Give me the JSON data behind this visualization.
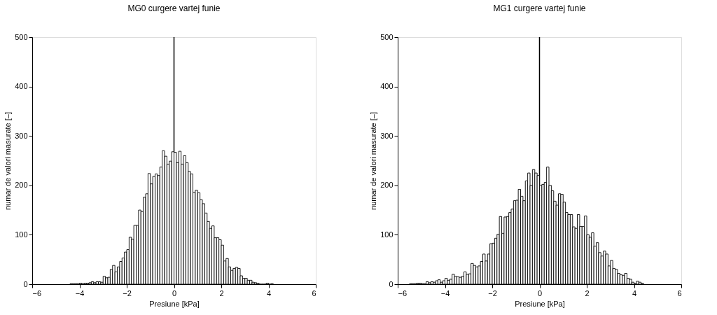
{
  "chart_data": [
    {
      "type": "histogram",
      "title": "MG0 curgere vartej funie",
      "xlabel": "Presiune [kPa]",
      "ylabel": "numar de valori masurate [–]",
      "color": "#ffffff",
      "bins": [
        -4.4,
        -4.3,
        -4.2,
        -4.1,
        -4.0,
        -3.9,
        -3.8,
        -3.7,
        -3.6,
        -3.5,
        -3.4,
        -3.3,
        -3.2,
        -3.1,
        -3.0,
        -2.9,
        -2.8,
        -2.7,
        -2.6,
        -2.5,
        -2.4,
        -2.3,
        -2.2,
        -2.1,
        -2.0,
        -1.9,
        -1.8,
        -1.7,
        -1.6,
        -1.5,
        -1.4,
        -1.3,
        -1.2,
        -1.1,
        -1.0,
        -0.9,
        -0.8,
        -0.7,
        -0.6,
        -0.5,
        -0.4,
        -0.3,
        -0.2,
        -0.1,
        0.0,
        0.1,
        0.2,
        0.3,
        0.4,
        0.5,
        0.6,
        0.7,
        0.8,
        0.9,
        1.0,
        1.1,
        1.2,
        1.3,
        1.4,
        1.5,
        1.6,
        1.7,
        1.8,
        1.9,
        2.0,
        2.1,
        2.2,
        2.3,
        2.4,
        2.5,
        2.6,
        2.7,
        2.8,
        2.9,
        3.0,
        3.1,
        3.2,
        3.3,
        3.4,
        3.5,
        3.6,
        3.7,
        3.8,
        3.9,
        4.0,
        4.1,
        4.2
      ],
      "values": [
        1,
        1,
        1,
        1,
        2,
        1,
        2,
        2,
        3,
        5,
        3,
        5,
        5,
        4,
        16,
        13,
        14,
        30,
        38,
        25,
        35,
        46,
        53,
        65,
        70,
        95,
        91,
        119,
        119,
        150,
        147,
        176,
        183,
        224,
        203,
        218,
        223,
        220,
        237,
        270,
        259,
        243,
        249,
        268,
        267,
        246,
        269,
        243,
        260,
        246,
        228,
        223,
        186,
        190,
        185,
        171,
        163,
        144,
        127,
        113,
        118,
        94,
        94,
        90,
        79,
        47,
        52,
        35,
        28,
        32,
        34,
        32,
        17,
        12,
        12,
        8,
        8,
        4,
        3,
        2,
        0,
        0,
        0,
        2,
        0,
        1
      ],
      "xlim": [
        -6,
        6
      ],
      "xticks": [
        -6,
        -4,
        -2,
        0,
        2,
        4,
        6
      ],
      "ylim": [
        0,
        500
      ],
      "yticks": [
        0,
        100,
        200,
        300,
        400,
        500
      ],
      "grid": false,
      "ref_lines": [
        {
          "axis": "x",
          "value": 0,
          "color": "#000000"
        }
      ]
    },
    {
      "type": "histogram",
      "title": "MG1 curgere vartej funie",
      "xlabel": "Presiune [kPa]",
      "ylabel": "numar de valori masurate [–]",
      "color": "#ffffff",
      "bins": [
        -5.5,
        -5.4,
        -5.3,
        -5.2,
        -5.1,
        -5.0,
        -4.9,
        -4.8,
        -4.7,
        -4.6,
        -4.5,
        -4.4,
        -4.3,
        -4.2,
        -4.1,
        -4.0,
        -3.9,
        -3.8,
        -3.7,
        -3.6,
        -3.5,
        -3.4,
        -3.3,
        -3.2,
        -3.1,
        -3.0,
        -2.9,
        -2.8,
        -2.7,
        -2.6,
        -2.5,
        -2.4,
        -2.3,
        -2.2,
        -2.1,
        -2.0,
        -1.9,
        -1.8,
        -1.7,
        -1.6,
        -1.5,
        -1.4,
        -1.3,
        -1.2,
        -1.1,
        -1.0,
        -0.9,
        -0.8,
        -0.7,
        -0.6,
        -0.5,
        -0.4,
        -0.3,
        -0.2,
        -0.1,
        0.0,
        0.1,
        0.2,
        0.3,
        0.4,
        0.5,
        0.6,
        0.7,
        0.8,
        0.9,
        1.0,
        1.1,
        1.2,
        1.3,
        1.4,
        1.5,
        1.6,
        1.7,
        1.8,
        1.9,
        2.0,
        2.1,
        2.2,
        2.3,
        2.4,
        2.5,
        2.6,
        2.7,
        2.8,
        2.9,
        3.0,
        3.1,
        3.2,
        3.3,
        3.4,
        3.5,
        3.6,
        3.7,
        3.8,
        3.9,
        4.0,
        4.1,
        4.2,
        4.3,
        4.4
      ],
      "values": [
        1,
        1,
        1,
        2,
        2,
        1,
        1,
        5,
        3,
        5,
        4,
        7,
        9,
        4,
        7,
        12,
        8,
        10,
        20,
        16,
        15,
        14,
        16,
        25,
        20,
        21,
        42,
        38,
        35,
        37,
        46,
        61,
        47,
        61,
        82,
        83,
        93,
        101,
        137,
        103,
        136,
        137,
        145,
        152,
        169,
        170,
        192,
        178,
        169,
        209,
        225,
        200,
        232,
        225,
        220,
        200,
        202,
        206,
        237,
        200,
        189,
        168,
        160,
        183,
        182,
        166,
        145,
        141,
        141,
        116,
        113,
        141,
        117,
        117,
        138,
        100,
        95,
        104,
        77,
        84,
        64,
        57,
        67,
        61,
        37,
        48,
        32,
        30,
        22,
        19,
        18,
        22,
        12,
        10,
        4,
        2,
        6,
        4,
        2
      ],
      "xlim": [
        -6,
        6
      ],
      "xticks": [
        -6,
        -4,
        -2,
        0,
        2,
        4,
        6
      ],
      "ylim": [
        0,
        500
      ],
      "yticks": [
        0,
        100,
        200,
        300,
        400,
        500
      ],
      "grid": false,
      "ref_lines": [
        {
          "axis": "x",
          "value": 0,
          "color": "#000000"
        }
      ]
    }
  ]
}
